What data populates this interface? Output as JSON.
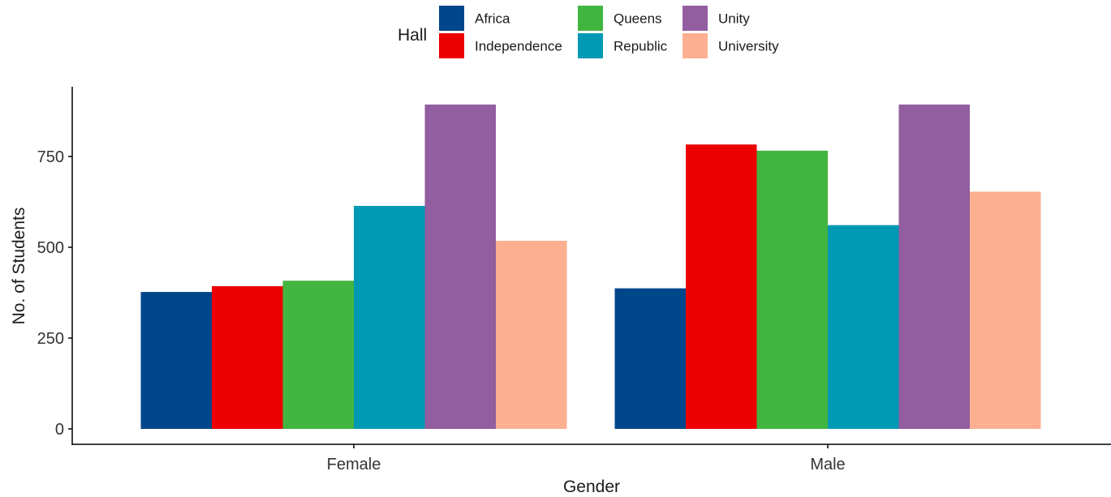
{
  "chart_data": {
    "type": "bar",
    "xlabel": "Gender",
    "ylabel": "No. of Students",
    "categories": [
      "Female",
      "Male"
    ],
    "ylim": [
      0,
      920
    ],
    "yticks": [
      0,
      250,
      500,
      750
    ],
    "grid": false,
    "legend": {
      "title": "Hall",
      "placement": "top"
    },
    "series": [
      {
        "name": "Africa",
        "color": "#00468B",
        "values": [
          377,
          387
        ]
      },
      {
        "name": "Independence",
        "color": "#ED0000",
        "values": [
          393,
          783
        ]
      },
      {
        "name": "Queens",
        "color": "#42B540",
        "values": [
          408,
          766
        ]
      },
      {
        "name": "Republic",
        "color": "#0099B4",
        "values": [
          614,
          561
        ]
      },
      {
        "name": "Unity",
        "color": "#925E9F",
        "values": [
          893,
          893
        ]
      },
      {
        "name": "University",
        "color": "#FDAF91",
        "values": [
          518,
          653
        ]
      }
    ]
  }
}
